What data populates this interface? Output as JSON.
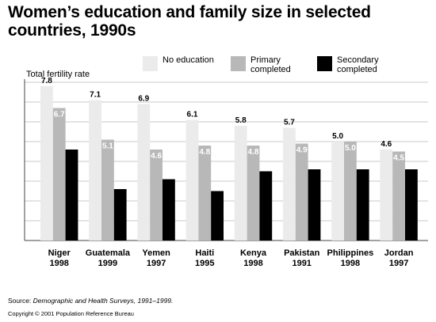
{
  "title": "Women’s education and family size in selected countries, 1990s",
  "source_prefix": "Source: ",
  "source_italic": "Demographic and Health Surveys, 1991–1999.",
  "copyright": "Copyright © 2001 Population Reference Bureau",
  "colors": {
    "no_education": "#ebebeb",
    "primary": "#b8b8b8",
    "secondary": "#000000",
    "grid": "#c8c8c8",
    "axis": "#444444"
  },
  "chart_data": {
    "type": "bar",
    "title": "Women’s education and family size in selected countries, 1990s",
    "ylabel": "Total fertility rate",
    "xlabel": "",
    "ylim": [
      0,
      8
    ],
    "grid": true,
    "legend_position": "top",
    "categories": [
      {
        "country": "Niger",
        "year": "1998"
      },
      {
        "country": "Guatemala",
        "year": "1999"
      },
      {
        "country": "Yemen",
        "year": "1997"
      },
      {
        "country": "Haiti",
        "year": "1995"
      },
      {
        "country": "Kenya",
        "year": "1998"
      },
      {
        "country": "Pakistan",
        "year": "1991"
      },
      {
        "country": "Philippines",
        "year": "1998"
      },
      {
        "country": "Jordan",
        "year": "1997"
      }
    ],
    "series": [
      {
        "key": "no_education",
        "name": "No education",
        "values": [
          7.8,
          7.1,
          6.9,
          6.1,
          5.8,
          5.7,
          5.0,
          4.6
        ]
      },
      {
        "key": "primary",
        "name": "Primary completed",
        "values": [
          6.7,
          5.1,
          4.6,
          4.8,
          4.8,
          4.9,
          5.0,
          4.5
        ]
      },
      {
        "key": "secondary",
        "name": "Secondary completed",
        "values": [
          4.6,
          2.6,
          3.1,
          2.5,
          3.5,
          3.6,
          3.6,
          3.6
        ]
      }
    ]
  }
}
